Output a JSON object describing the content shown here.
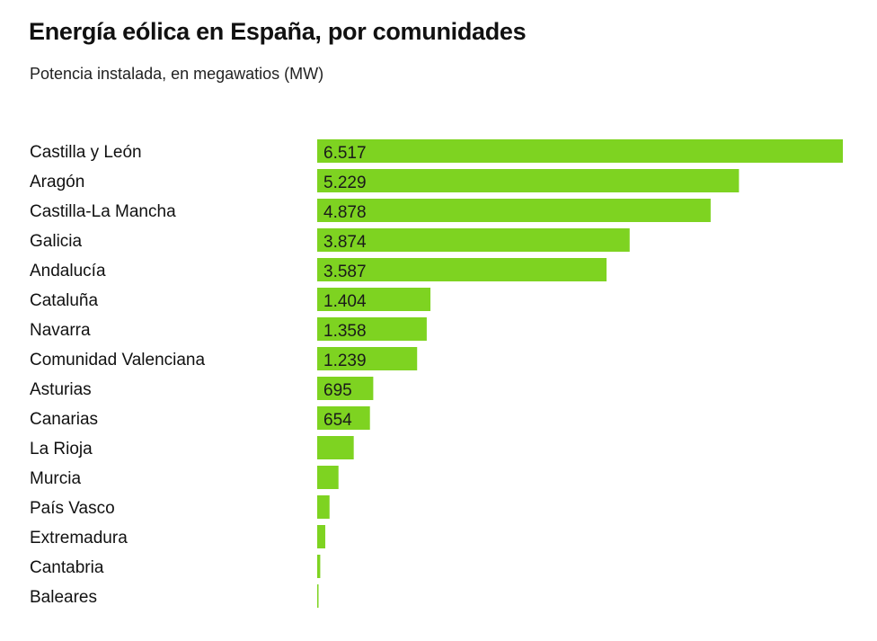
{
  "chart_data": {
    "type": "bar",
    "orientation": "horizontal",
    "title": "Energía eólica en España, por comunidades",
    "subtitle": "Potencia instalada, en megawatios (MW)",
    "bar_color": "#7ed321",
    "categories": [
      "Castilla y León",
      "Aragón",
      "Castilla-La Mancha",
      "Galicia",
      "Andalucía",
      "Cataluña",
      "Navarra",
      "Comunidad Valenciana",
      "Asturias",
      "Canarias",
      "La Rioja",
      "Murcia",
      "País Vasco",
      "Extremadura",
      "Cantabria",
      "Baleares"
    ],
    "values": [
      6517,
      5229,
      4878,
      3874,
      3587,
      1404,
      1358,
      1239,
      695,
      654,
      453,
      264,
      153,
      100,
      38,
      4
    ],
    "labels": [
      "6.517",
      "5.229",
      "4.878",
      "3.874",
      "3.587",
      "1.404",
      "1.358",
      "1.239",
      "695",
      "654",
      "",
      "",
      "",
      "",
      "",
      ""
    ],
    "xlim": [
      0,
      6517
    ]
  }
}
